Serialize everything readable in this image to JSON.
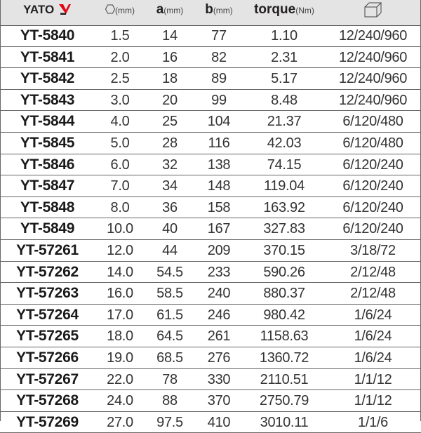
{
  "header": {
    "brand": "YATO",
    "hex_unit": "(mm)",
    "a_label": "a",
    "a_unit": "(mm)",
    "b_label": "b",
    "b_unit": "(mm)",
    "torque_label": "torque",
    "torque_unit": "(Nm)",
    "package_icon": "box-icon",
    "hex_icon": "hexagon-icon"
  },
  "colors": {
    "logo_red": "#e30613",
    "header_bg": "#e4e4e4"
  },
  "rows": [
    [
      "YT-5840",
      "1.5",
      "14",
      "77",
      "1.10",
      "12/240/960"
    ],
    [
      "YT-5841",
      "2.0",
      "16",
      "82",
      "2.31",
      "12/240/960"
    ],
    [
      "YT-5842",
      "2.5",
      "18",
      "89",
      "5.17",
      "12/240/960"
    ],
    [
      "YT-5843",
      "3.0",
      "20",
      "99",
      "8.48",
      "12/240/960"
    ],
    [
      "YT-5844",
      "4.0",
      "25",
      "104",
      "21.37",
      "6/120/480"
    ],
    [
      "YT-5845",
      "5.0",
      "28",
      "116",
      "42.03",
      "6/120/480"
    ],
    [
      "YT-5846",
      "6.0",
      "32",
      "138",
      "74.15",
      "6/120/240"
    ],
    [
      "YT-5847",
      "7.0",
      "34",
      "148",
      "119.04",
      "6/120/240"
    ],
    [
      "YT-5848",
      "8.0",
      "36",
      "158",
      "163.92",
      "6/120/240"
    ],
    [
      "YT-5849",
      "10.0",
      "40",
      "167",
      "327.83",
      "6/120/240"
    ],
    [
      "YT-57261",
      "12.0",
      "44",
      "209",
      "370.15",
      "3/18/72"
    ],
    [
      "YT-57262",
      "14.0",
      "54.5",
      "233",
      "590.26",
      "2/12/48"
    ],
    [
      "YT-57263",
      "16.0",
      "58.5",
      "240",
      "880.37",
      "2/12/48"
    ],
    [
      "YT-57264",
      "17.0",
      "61.5",
      "246",
      "980.42",
      "1/6/24"
    ],
    [
      "YT-57265",
      "18.0",
      "64.5",
      "261",
      "1158.63",
      "1/6/24"
    ],
    [
      "YT-57266",
      "19.0",
      "68.5",
      "276",
      "1360.72",
      "1/6/24"
    ],
    [
      "YT-57267",
      "22.0",
      "78",
      "330",
      "2110.51",
      "1/1/12"
    ],
    [
      "YT-57268",
      "24.0",
      "88",
      "370",
      "2750.79",
      "1/1/12"
    ],
    [
      "YT-57269",
      "27.0",
      "97.5",
      "410",
      "3010.11",
      "1/1/6"
    ]
  ]
}
